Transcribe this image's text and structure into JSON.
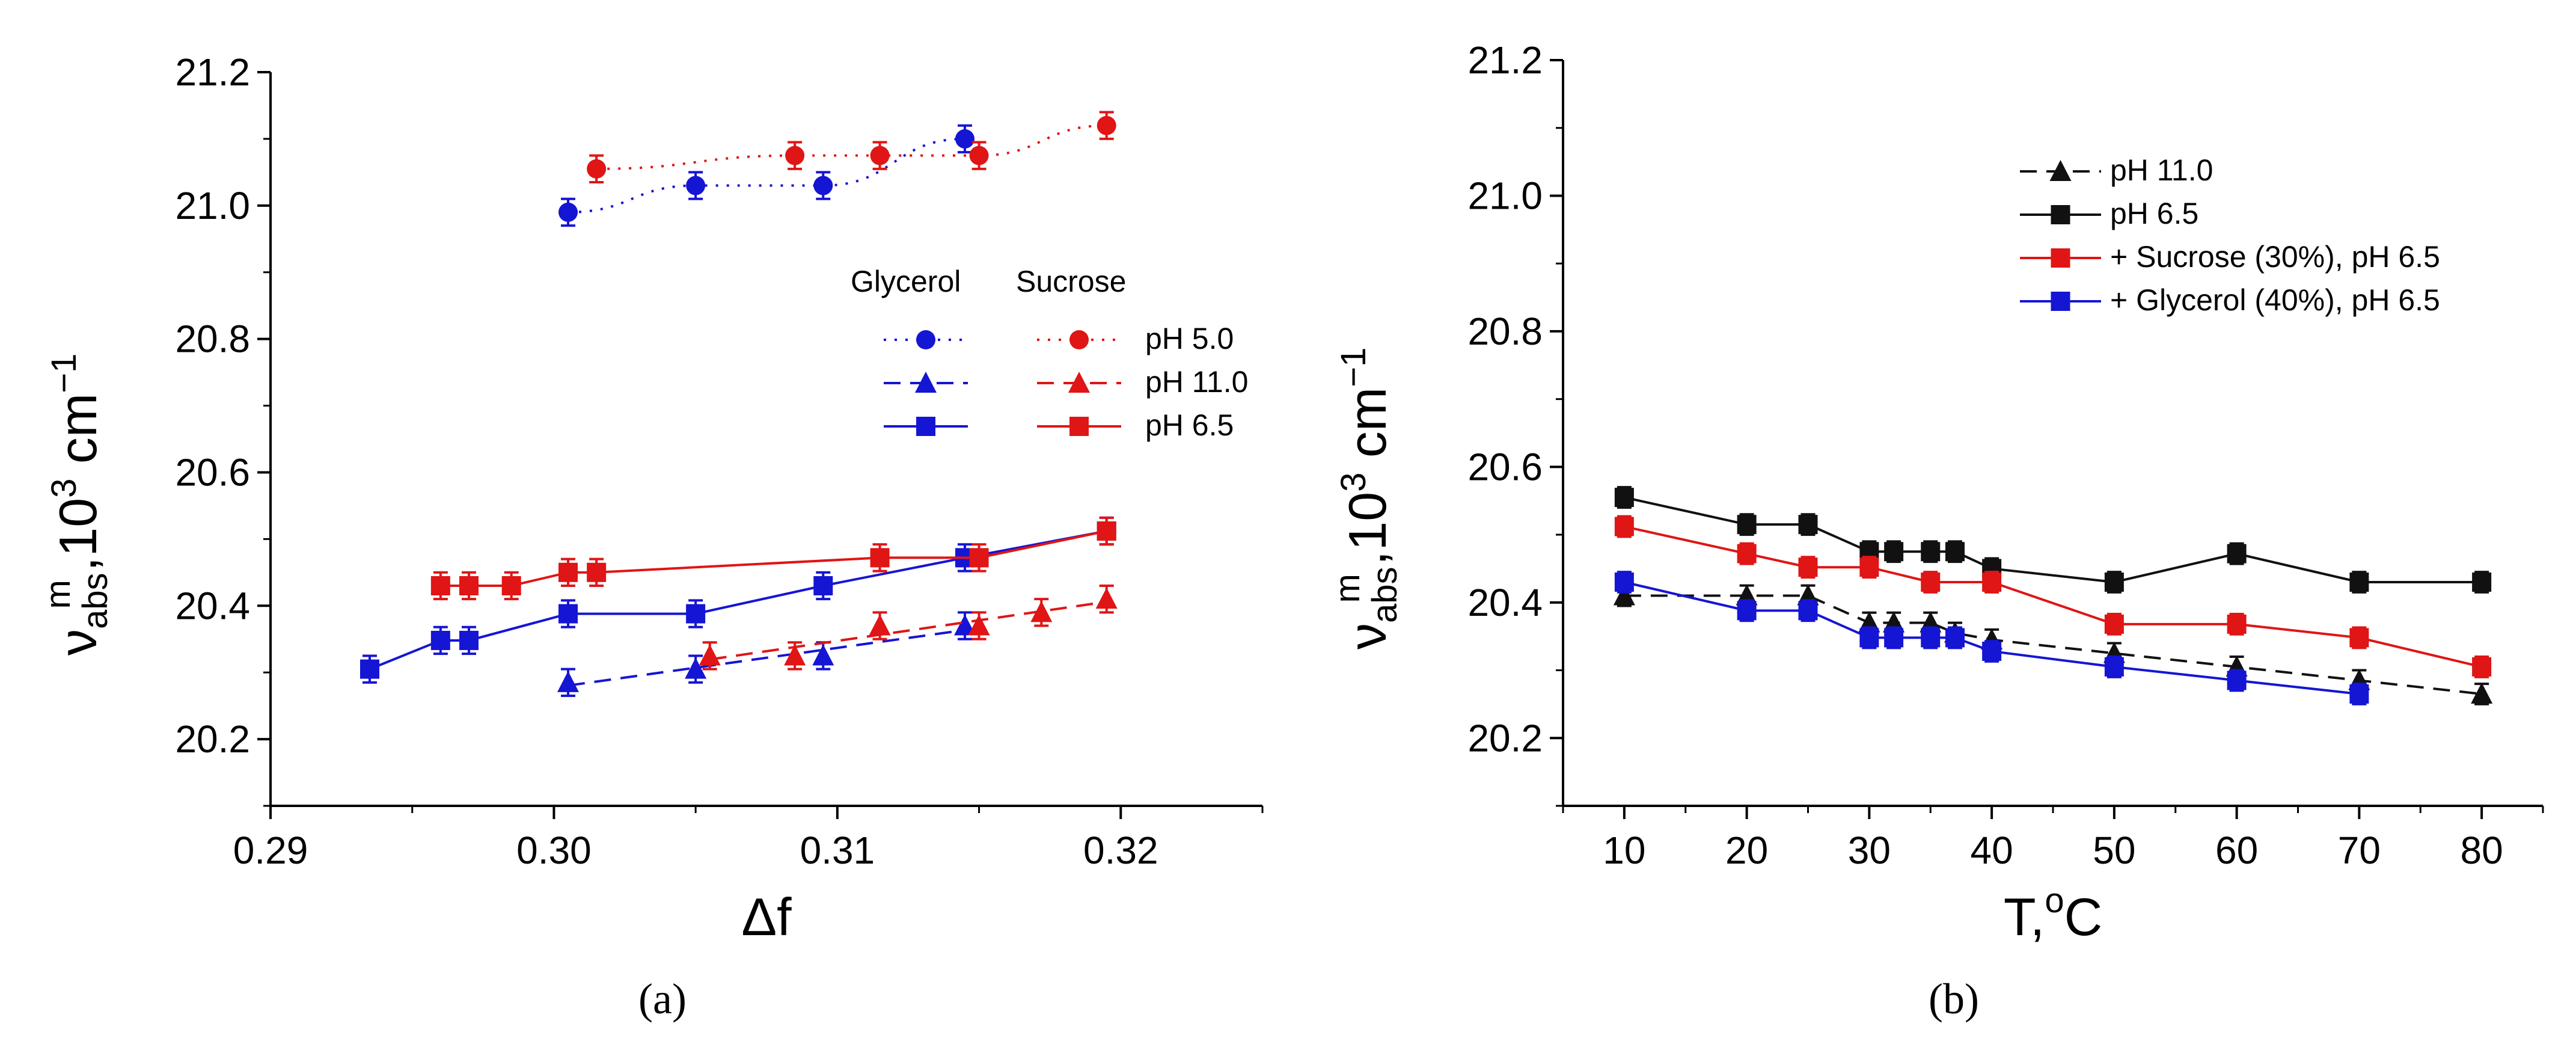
{
  "chart_data": [
    {
      "type": "scatter",
      "panel_label": "(a)",
      "xlabel": "Δf",
      "ylabel_main": "ν",
      "ylabel_sub": "abs",
      "ylabel_sup": "m",
      "ylabel_tail": ",10",
      "ylabel_exp": "3",
      "ylabel_unit": " cm",
      "ylabel_unit_exp": "−1",
      "xlim": [
        0.29,
        0.325
      ],
      "ylim": [
        20.1,
        21.2
      ],
      "xticks": [
        0.29,
        0.3,
        0.31,
        0.32
      ],
      "xtick_labels": [
        "0.29",
        "0.30",
        "0.31",
        "0.32"
      ],
      "yticks": [
        20.2,
        20.4,
        20.6,
        20.8,
        21.0,
        21.2
      ],
      "ytick_labels": [
        "20.2",
        "20.4",
        "20.6",
        "20.8",
        "21.0",
        "21.2"
      ],
      "legend": {
        "placement": "right",
        "col_headers": [
          "Glycerol",
          "Sucrose"
        ],
        "rows": [
          "pH   5.0",
          "pH 11.0",
          "pH   6.5"
        ]
      },
      "series": [
        {
          "group": "Glycerol",
          "row": 0,
          "marker": "circle",
          "line": "dotted",
          "fit": "curve",
          "color": "#1515d4",
          "x": [
            0.3005,
            0.305,
            0.3095,
            0.3145
          ],
          "y": [
            20.99,
            21.03,
            21.03,
            21.1
          ],
          "err": 0.02
        },
        {
          "group": "Sucrose",
          "row": 0,
          "marker": "circle",
          "line": "dotted",
          "fit": "curve",
          "color": "#e01515",
          "x": [
            0.3015,
            0.3085,
            0.3115,
            0.315,
            0.3195
          ],
          "y": [
            21.055,
            21.075,
            21.075,
            21.075,
            21.12
          ],
          "err": 0.02
        },
        {
          "group": "Glycerol",
          "row": 1,
          "marker": "triangle",
          "line": "dashed",
          "fit": "line",
          "color": "#1515d4",
          "x": [
            0.3005,
            0.305,
            0.3095,
            0.3145
          ],
          "y": [
            20.285,
            20.305,
            20.325,
            20.37
          ],
          "err": 0.02
        },
        {
          "group": "Sucrose",
          "row": 1,
          "marker": "triangle",
          "line": "dashed",
          "fit": "line",
          "color": "#e01515",
          "x": [
            0.3055,
            0.3085,
            0.3115,
            0.315,
            0.3172,
            0.3195
          ],
          "y": [
            20.325,
            20.325,
            20.37,
            20.37,
            20.39,
            20.41
          ],
          "err": 0.02
        },
        {
          "group": "Glycerol",
          "row": 2,
          "marker": "square",
          "line": "solid",
          "fit": "connect",
          "color": "#1515d4",
          "x": [
            0.2935,
            0.296,
            0.297,
            0.3005,
            0.305,
            0.3095,
            0.3145,
            0.3195
          ],
          "y": [
            20.305,
            20.348,
            20.348,
            20.388,
            20.388,
            20.43,
            20.472,
            20.512
          ],
          "err": 0.02
        },
        {
          "group": "Sucrose",
          "row": 2,
          "marker": "square",
          "line": "solid",
          "fit": "connect",
          "color": "#e01515",
          "x": [
            0.296,
            0.297,
            0.2985,
            0.3005,
            0.3015,
            0.3115,
            0.315,
            0.3195
          ],
          "y": [
            20.43,
            20.43,
            20.43,
            20.45,
            20.45,
            20.472,
            20.472,
            20.512
          ],
          "err": 0.02
        }
      ]
    },
    {
      "type": "line",
      "panel_label": "(b)",
      "xlabel": "T,",
      "xlabel_sup": "o",
      "xlabel_tail": "C",
      "ylabel_main": "ν",
      "ylabel_sub": "abs",
      "ylabel_sup": "m",
      "ylabel_tail": ",10",
      "ylabel_exp": "3",
      "ylabel_unit": " cm",
      "ylabel_unit_exp": "−1",
      "xlim": [
        5,
        85
      ],
      "ylim": [
        20.1,
        21.2
      ],
      "xticks": [
        10,
        20,
        30,
        40,
        50,
        60,
        70,
        80
      ],
      "xtick_labels": [
        "10",
        "20",
        "30",
        "40",
        "50",
        "60",
        "70",
        "80"
      ],
      "yticks": [
        20.2,
        20.4,
        20.6,
        20.8,
        21.0,
        21.2
      ],
      "ytick_labels": [
        "20.2",
        "20.4",
        "20.6",
        "20.8",
        "21.0",
        "21.2"
      ],
      "legend": {
        "placement": "top-right"
      },
      "series": [
        {
          "name": "pH 11.0",
          "marker": "triangle",
          "line": "dashed",
          "color": "#111111",
          "x": [
            10,
            20,
            25,
            30,
            32,
            35,
            37,
            40,
            50,
            60,
            70,
            80
          ],
          "y": [
            20.41,
            20.41,
            20.41,
            20.37,
            20.37,
            20.37,
            20.355,
            20.345,
            20.325,
            20.305,
            20.285,
            20.265
          ],
          "err": 0.015
        },
        {
          "name": "pH   6.5",
          "marker": "square",
          "line": "solid",
          "color": "#111111",
          "x": [
            10,
            20,
            25,
            30,
            32,
            35,
            37,
            40,
            50,
            60,
            70,
            80
          ],
          "y": [
            20.555,
            20.515,
            20.515,
            20.475,
            20.475,
            20.475,
            20.475,
            20.45,
            20.43,
            20.472,
            20.43,
            20.43
          ],
          "err": 0.015
        },
        {
          "name": "+ Sucrose (30%), pH 6.5",
          "marker": "square",
          "line": "solid",
          "color": "#e01515",
          "x": [
            10,
            20,
            25,
            30,
            35,
            40,
            50,
            60,
            70,
            80
          ],
          "y": [
            20.512,
            20.472,
            20.452,
            20.452,
            20.43,
            20.43,
            20.368,
            20.368,
            20.348,
            20.305
          ],
          "err": 0.015
        },
        {
          "name": "+ Glycerol (40%), pH 6.5",
          "marker": "square",
          "line": "solid",
          "color": "#1515d4",
          "x": [
            10,
            20,
            25,
            30,
            32,
            35,
            37,
            40,
            50,
            60,
            70
          ],
          "y": [
            20.43,
            20.388,
            20.388,
            20.348,
            20.348,
            20.348,
            20.348,
            20.328,
            20.305,
            20.285,
            20.265
          ],
          "err": 0.015
        }
      ]
    }
  ]
}
